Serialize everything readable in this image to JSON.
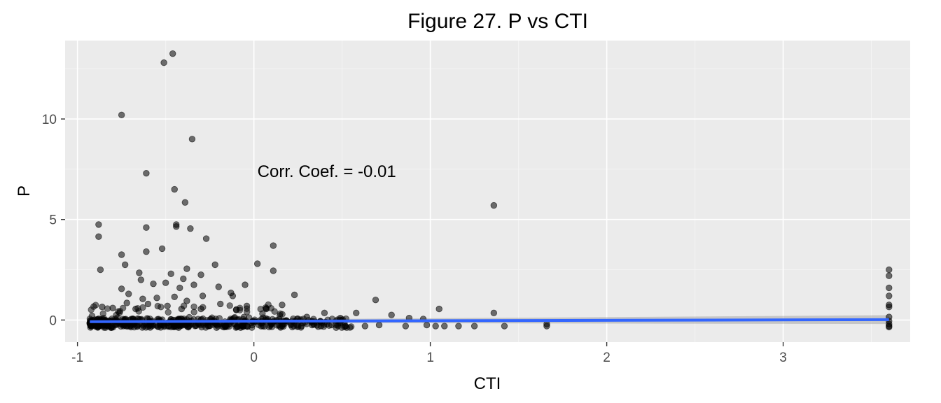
{
  "chart_data": {
    "type": "scatter",
    "title": "Figure 27. P vs CTI",
    "xlabel": "CTI",
    "ylabel": "P",
    "xlim": [
      -1.07,
      3.72
    ],
    "ylim": [
      -1.1,
      13.9
    ],
    "x_ticks": [
      -1,
      0,
      1,
      2,
      3
    ],
    "y_ticks": [
      0,
      5,
      10
    ],
    "x_tick_labels": [
      "-1",
      "0",
      "1",
      "2",
      "3"
    ],
    "y_tick_labels": [
      "0",
      "5",
      "10"
    ],
    "grid": true,
    "legend": "none",
    "annotation": {
      "text": "Corr. Coef. = -0.01",
      "x": 0.02,
      "y": 7.4
    },
    "colors": {
      "panel": "#ebebeb",
      "grid_major": "#ffffff",
      "grid_minor": "#f4f4f4",
      "points": "#000000",
      "fit_line": "#3366ff",
      "confidence_band": "#999999"
    },
    "fit": {
      "x": [
        -0.93,
        3.6
      ],
      "y": [
        -0.08,
        0.02
      ],
      "band_half_width_start": 0.05,
      "band_half_width_end": 0.22
    },
    "series": [
      {
        "points": [
          [
            -0.46,
            13.25
          ],
          [
            -0.51,
            12.8
          ],
          [
            -0.75,
            10.2
          ],
          [
            -0.35,
            9.0
          ],
          [
            -0.61,
            7.3
          ],
          [
            -0.45,
            6.5
          ],
          [
            -0.39,
            5.85
          ],
          [
            1.36,
            5.7
          ],
          [
            -0.88,
            4.75
          ],
          [
            -0.44,
            4.75
          ],
          [
            -0.61,
            4.6
          ],
          [
            -0.36,
            4.55
          ],
          [
            -0.44,
            4.65
          ],
          [
            -0.88,
            4.15
          ],
          [
            -0.27,
            4.05
          ],
          [
            0.11,
            3.7
          ],
          [
            -0.61,
            3.4
          ],
          [
            -0.52,
            3.55
          ],
          [
            -0.75,
            3.25
          ],
          [
            -0.73,
            2.75
          ],
          [
            -0.22,
            2.75
          ],
          [
            0.02,
            2.8
          ],
          [
            -0.87,
            2.5
          ],
          [
            -0.38,
            2.55
          ],
          [
            -0.65,
            2.35
          ],
          [
            -0.47,
            2.3
          ],
          [
            0.11,
            2.45
          ],
          [
            -0.3,
            2.25
          ],
          [
            -0.4,
            2.05
          ],
          [
            -0.64,
            2.0
          ],
          [
            -0.5,
            1.85
          ],
          [
            -0.57,
            1.8
          ],
          [
            -0.34,
            1.75
          ],
          [
            -0.05,
            1.75
          ],
          [
            -0.2,
            1.65
          ],
          [
            -0.75,
            1.55
          ],
          [
            -0.42,
            1.6
          ],
          [
            -0.71,
            1.3
          ],
          [
            -0.13,
            1.35
          ],
          [
            -0.55,
            1.1
          ],
          [
            -0.45,
            1.15
          ],
          [
            -0.29,
            1.2
          ],
          [
            -0.63,
            1.05
          ],
          [
            -0.12,
            1.2
          ],
          [
            0.23,
            1.25
          ],
          [
            -0.38,
            0.95
          ],
          [
            0.69,
            1.0
          ],
          [
            -0.72,
            0.85
          ],
          [
            -0.6,
            0.8
          ],
          [
            -0.49,
            0.7
          ],
          [
            -0.19,
            0.8
          ],
          [
            -0.04,
            0.7
          ],
          [
            0.16,
            0.75
          ],
          [
            -0.86,
            0.65
          ],
          [
            -0.8,
            0.6
          ],
          [
            -0.67,
            0.55
          ],
          [
            -0.41,
            0.55
          ],
          [
            -0.3,
            0.55
          ],
          [
            -0.1,
            0.5
          ],
          [
            0.07,
            0.55
          ],
          [
            1.05,
            0.55
          ],
          [
            0.4,
            0.35
          ],
          [
            0.58,
            0.35
          ],
          [
            0.78,
            0.25
          ],
          [
            1.36,
            0.35
          ],
          [
            0.3,
            0.15
          ],
          [
            0.49,
            0.1
          ],
          [
            0.88,
            0.1
          ],
          [
            0.96,
            0.05
          ],
          [
            -0.93,
            -0.15
          ],
          [
            -0.88,
            -0.25
          ],
          [
            -0.82,
            -0.3
          ],
          [
            -0.78,
            -0.2
          ],
          [
            -0.7,
            -0.3
          ],
          [
            -0.66,
            -0.25
          ],
          [
            -0.58,
            -0.3
          ],
          [
            -0.53,
            -0.2
          ],
          [
            -0.48,
            -0.3
          ],
          [
            -0.43,
            -0.25
          ],
          [
            -0.37,
            -0.3
          ],
          [
            -0.31,
            -0.2
          ],
          [
            -0.26,
            -0.3
          ],
          [
            -0.21,
            -0.25
          ],
          [
            -0.16,
            -0.3
          ],
          [
            -0.11,
            -0.2
          ],
          [
            -0.06,
            -0.3
          ],
          [
            -0.01,
            -0.25
          ],
          [
            0.05,
            -0.3
          ],
          [
            0.1,
            -0.2
          ],
          [
            0.16,
            -0.3
          ],
          [
            0.21,
            -0.25
          ],
          [
            0.27,
            -0.3
          ],
          [
            0.33,
            -0.25
          ],
          [
            0.38,
            -0.3
          ],
          [
            0.44,
            -0.25
          ],
          [
            0.52,
            -0.3
          ],
          [
            0.63,
            -0.3
          ],
          [
            0.71,
            -0.25
          ],
          [
            0.86,
            -0.3
          ],
          [
            0.98,
            -0.25
          ],
          [
            1.03,
            -0.3
          ],
          [
            1.08,
            -0.3
          ],
          [
            1.16,
            -0.3
          ],
          [
            1.25,
            -0.3
          ],
          [
            1.42,
            -0.3
          ],
          [
            1.66,
            -0.3
          ],
          [
            1.66,
            -0.2
          ],
          [
            3.6,
            2.5
          ],
          [
            3.6,
            2.2
          ],
          [
            3.6,
            1.6
          ],
          [
            3.6,
            1.2
          ],
          [
            3.6,
            0.75
          ],
          [
            3.6,
            0.65
          ],
          [
            3.6,
            0.15
          ],
          [
            3.6,
            -0.05
          ],
          [
            3.6,
            -0.2
          ],
          [
            3.6,
            -0.3
          ],
          [
            3.6,
            -0.35
          ]
        ]
      }
    ]
  }
}
